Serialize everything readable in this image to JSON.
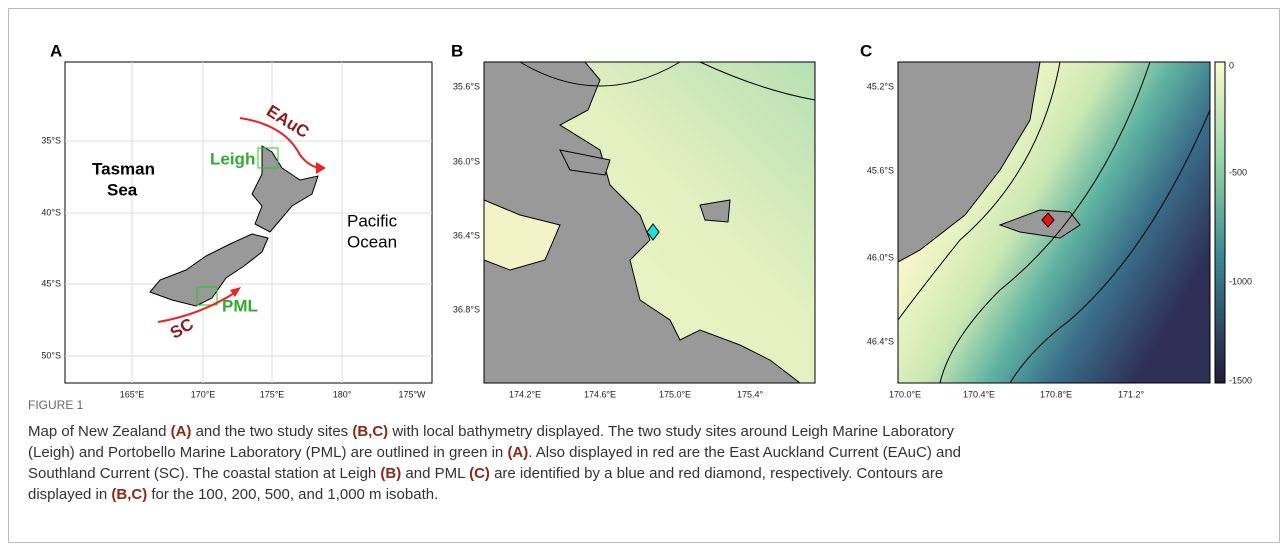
{
  "panels": [
    {
      "label": "A",
      "yticks": [
        "35°S",
        "40°S",
        "45°S",
        "50°S"
      ],
      "xticks": [
        "165°E",
        "170°E",
        "175°E",
        "180°",
        "175°W"
      ],
      "annotations": [
        "Tasman",
        "Sea",
        "Pacific",
        "Ocean",
        "Leigh",
        "PML",
        "EAuC",
        "SC"
      ]
    },
    {
      "label": "B",
      "yticks": [
        "35.6°S",
        "36.0°S",
        "36.4°S",
        "36.8°S"
      ],
      "xticks": [
        "174.2°E",
        "174.6°E",
        "175.0°E",
        "175.4°"
      ]
    },
    {
      "label": "C",
      "yticks": [
        "45.2°S",
        "45.6°S",
        "46.0°S",
        "46.4°S"
      ],
      "xticks": [
        "170.0°E",
        "170.4°E",
        "170.8°E",
        "171.2°"
      ]
    }
  ],
  "colorbar": {
    "ticks": [
      "0",
      "-500",
      "-1000",
      "-1500"
    ]
  },
  "caption": {
    "title": "FIGURE 1",
    "lines": [
      [
        {
          "text": "Map of New Zealand ",
          "bold": false
        },
        {
          "text": "(A)",
          "bold": true
        },
        {
          "text": " and the two study sites ",
          "bold": false
        },
        {
          "text": "(B,C)",
          "bold": true
        },
        {
          "text": " with local bathymetry displayed. The two study sites around Leigh Marine Laboratory",
          "bold": false
        }
      ],
      [
        {
          "text": "(Leigh) and Portobello Marine Laboratory (PML) are outlined in green in ",
          "bold": false
        },
        {
          "text": "(A)",
          "bold": true
        },
        {
          "text": ". Also displayed in red are the East Auckland Current (EAuC) and",
          "bold": false
        }
      ],
      [
        {
          "text": "Southland Current (SC). The coastal station at Leigh ",
          "bold": false
        },
        {
          "text": "(B)",
          "bold": true
        },
        {
          "text": " and PML ",
          "bold": false
        },
        {
          "text": "(C)",
          "bold": true
        },
        {
          "text": " are identified by a blue and red diamond, respectively. Contours are",
          "bold": false
        }
      ],
      [
        {
          "text": "displayed in ",
          "bold": false
        },
        {
          "text": "(B,C)",
          "bold": true
        },
        {
          "text": " for the 100, 200, 500, and 1,000 m isobath.",
          "bold": false
        }
      ]
    ]
  }
}
